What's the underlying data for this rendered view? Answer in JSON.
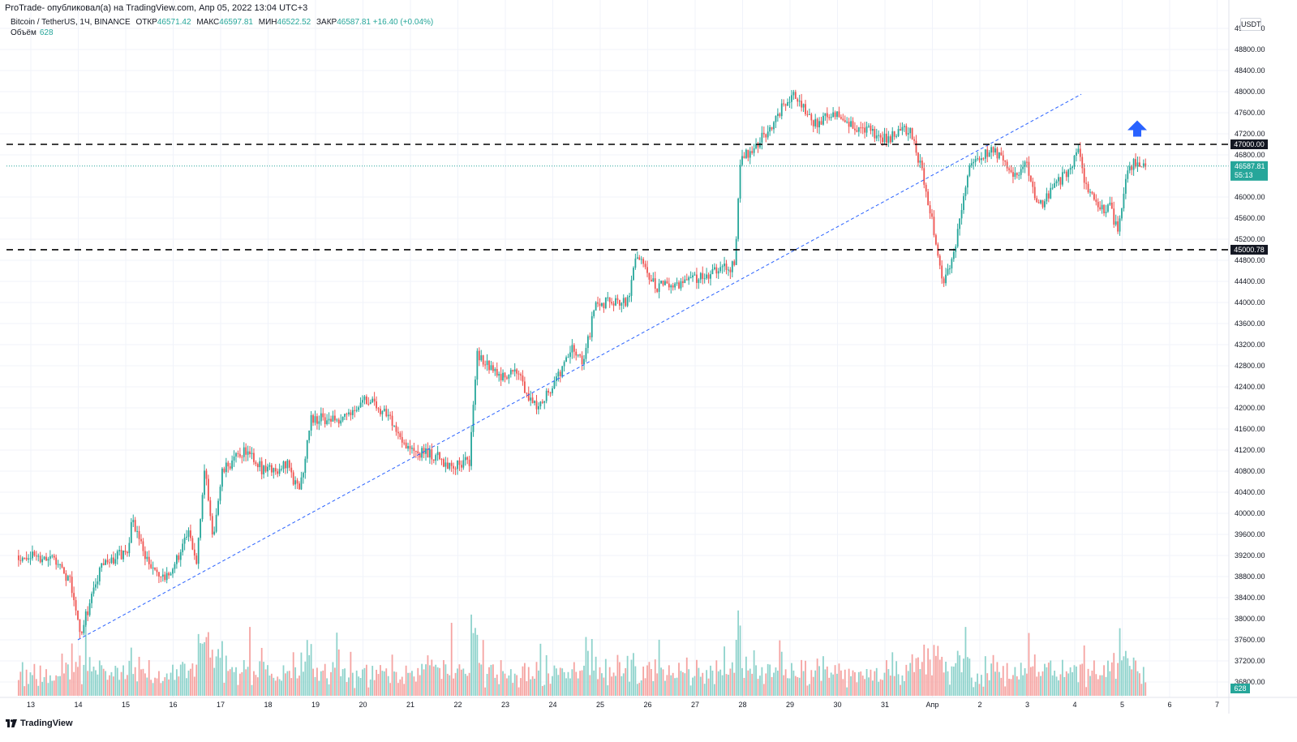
{
  "header": {
    "published_by": "ProTrade- опубликовал(а) на TradingView.com, Апр 05, 2022 13:04 UTC+3"
  },
  "legend": {
    "symbol": "Bitcoin / TetherUS, 1Ч, BINANCE",
    "open_label": "ОТКР",
    "open_value": "46571.42",
    "high_label": "МАКС",
    "high_value": "46597.81",
    "low_label": "МИН",
    "low_value": "46522.52",
    "close_label": "ЗАКР",
    "close_value": "46587.81",
    "change": "+16.40 (+0.04%)",
    "volume_label": "Объём",
    "volume_value": "628"
  },
  "price_axis": {
    "currency": "USDT",
    "ticks": [
      "49200.00",
      "48800.00",
      "48400.00",
      "48000.00",
      "47600.00",
      "47200.00",
      "46800.00",
      "46000.00",
      "45600.00",
      "45200.00",
      "44800.00",
      "44400.00",
      "44000.00",
      "43600.00",
      "43200.00",
      "42800.00",
      "42400.00",
      "42000.00",
      "41600.00",
      "41200.00",
      "40800.00",
      "40400.00",
      "40000.00",
      "39600.00",
      "39200.00",
      "38800.00",
      "38400.00",
      "38000.00",
      "37600.00",
      "37200.00",
      "36800.00"
    ],
    "current_price": "46587.81",
    "countdown": "55:13",
    "level_high": "47000.00",
    "level_low": "45000.78",
    "volume_badge": "628"
  },
  "time_axis": {
    "ticks": [
      "13",
      "14",
      "15",
      "16",
      "17",
      "18",
      "19",
      "20",
      "21",
      "22",
      "23",
      "24",
      "25",
      "26",
      "27",
      "28",
      "29",
      "30",
      "31",
      "Апр",
      "2",
      "3",
      "4",
      "5",
      "6",
      "7"
    ]
  },
  "footer": {
    "brand": "TradingView"
  },
  "colors": {
    "up": "#26a69a",
    "down": "#ef5350",
    "trend": "#2962ff",
    "arrow": "#2962ff"
  },
  "chart_data": {
    "type": "candlestick",
    "symbol": "BTCUSDT",
    "interval": "1H",
    "y_range": [
      36600,
      49300
    ],
    "horizontal_levels": [
      47000.0,
      45000.78
    ],
    "last_price": 46587.81,
    "trendline": {
      "from": {
        "date": "Mar 14",
        "price": 37600
      },
      "to": {
        "date": "Apr 4",
        "price": 47950
      }
    },
    "arrow": {
      "direction": "up",
      "date": "Apr 5",
      "price": 47300
    },
    "path_keypoints": [
      {
        "date": "Mar 12 18:00",
        "price": 39200
      },
      {
        "date": "Mar 13 12:00",
        "price": 39150
      },
      {
        "date": "Mar 13 20:00",
        "price": 38700
      },
      {
        "date": "Mar 14 01:00",
        "price": 37700
      },
      {
        "date": "Mar 14 12:00",
        "price": 39000
      },
      {
        "date": "Mar 15 01:00",
        "price": 39300
      },
      {
        "date": "Mar 15 03:00",
        "price": 39900
      },
      {
        "date": "Mar 15 12:00",
        "price": 39000
      },
      {
        "date": "Mar 15 20:00",
        "price": 38700
      },
      {
        "date": "Mar 16 08:00",
        "price": 39600
      },
      {
        "date": "Mar 16 12:00",
        "price": 39100
      },
      {
        "date": "Mar 16 16:00",
        "price": 40900
      },
      {
        "date": "Mar 16 20:00",
        "price": 39500
      },
      {
        "date": "Mar 17 01:00",
        "price": 40800
      },
      {
        "date": "Mar 17 12:00",
        "price": 41200
      },
      {
        "date": "Mar 17 22:00",
        "price": 40800
      },
      {
        "date": "Mar 18 10:00",
        "price": 40900
      },
      {
        "date": "Mar 18 16:00",
        "price": 40400
      },
      {
        "date": "Mar 18 22:00",
        "price": 41800
      },
      {
        "date": "Mar 19 12:00",
        "price": 41800
      },
      {
        "date": "Mar 19 20:00",
        "price": 42000
      },
      {
        "date": "Mar 20 01:00",
        "price": 42200
      },
      {
        "date": "Mar 20 12:00",
        "price": 41900
      },
      {
        "date": "Mar 21 00:00",
        "price": 41200
      },
      {
        "date": "Mar 21 12:00",
        "price": 41100
      },
      {
        "date": "Mar 21 20:00",
        "price": 40900
      },
      {
        "date": "Mar 22 06:00",
        "price": 41000
      },
      {
        "date": "Mar 22 10:00",
        "price": 43000
      },
      {
        "date": "Mar 22 20:00",
        "price": 42600
      },
      {
        "date": "Mar 23 06:00",
        "price": 42700
      },
      {
        "date": "Mar 23 14:00",
        "price": 42000
      },
      {
        "date": "Mar 24 00:00",
        "price": 42400
      },
      {
        "date": "Mar 24 10:00",
        "price": 43100
      },
      {
        "date": "Mar 24 16:00",
        "price": 42900
      },
      {
        "date": "Mar 24 22:00",
        "price": 44000
      },
      {
        "date": "Mar 25 14:00",
        "price": 44000
      },
      {
        "date": "Mar 25 18:00",
        "price": 44900
      },
      {
        "date": "Mar 26 04:00",
        "price": 44300
      },
      {
        "date": "Mar 26 20:00",
        "price": 44400
      },
      {
        "date": "Mar 27 12:00",
        "price": 44600
      },
      {
        "date": "Mar 27 20:00",
        "price": 44700
      },
      {
        "date": "Mar 27 23:00",
        "price": 46700
      },
      {
        "date": "Mar 28 12:00",
        "price": 47200
      },
      {
        "date": "Mar 28 20:00",
        "price": 47700
      },
      {
        "date": "Mar 29 02:00",
        "price": 48000
      },
      {
        "date": "Mar 29 12:00",
        "price": 47400
      },
      {
        "date": "Mar 30 00:00",
        "price": 47600
      },
      {
        "date": "Mar 30 08:00",
        "price": 47300
      },
      {
        "date": "Mar 30 14:00",
        "price": 47300
      },
      {
        "date": "Mar 31 00:00",
        "price": 47100
      },
      {
        "date": "Mar 31 12:00",
        "price": 47300
      },
      {
        "date": "Mar 31 18:00",
        "price": 46600
      },
      {
        "date": "Apr 1 00:00",
        "price": 45600
      },
      {
        "date": "Apr 1 06:00",
        "price": 44300
      },
      {
        "date": "Apr 1 12:00",
        "price": 45100
      },
      {
        "date": "Apr 1 18:00",
        "price": 46500
      },
      {
        "date": "Apr 2 06:00",
        "price": 46900
      },
      {
        "date": "Apr 2 18:00",
        "price": 46400
      },
      {
        "date": "Apr 3 00:00",
        "price": 46600
      },
      {
        "date": "Apr 3 06:00",
        "price": 45800
      },
      {
        "date": "Apr 3 16:00",
        "price": 46300
      },
      {
        "date": "Apr 3 23:00",
        "price": 46600
      },
      {
        "date": "Apr 4 02:00",
        "price": 46900
      },
      {
        "date": "Apr 4 06:00",
        "price": 46100
      },
      {
        "date": "Apr 4 12:00",
        "price": 45800
      },
      {
        "date": "Apr 4 18:00",
        "price": 45800
      },
      {
        "date": "Apr 4 22:00",
        "price": 45300
      },
      {
        "date": "Apr 5 02:00",
        "price": 46300
      },
      {
        "date": "Apr 5 06:00",
        "price": 46700
      },
      {
        "date": "Apr 5 12:00",
        "price": 46588
      }
    ]
  }
}
